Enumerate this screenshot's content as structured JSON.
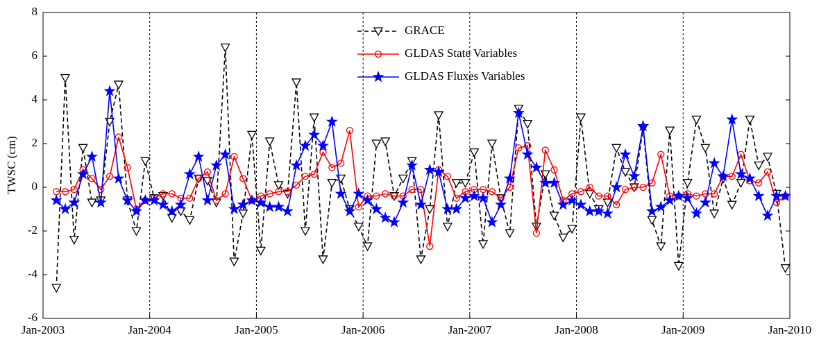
{
  "chart_data": {
    "type": "line",
    "y_label": "TWSC (cm)",
    "x": [
      "2003-02",
      "2003-03",
      "2003-04",
      "2003-05",
      "2003-06",
      "2003-07",
      "2003-08",
      "2003-09",
      "2003-10",
      "2003-11",
      "2003-12",
      "2004-01",
      "2004-02",
      "2004-03",
      "2004-04",
      "2004-05",
      "2004-06",
      "2004-07",
      "2004-08",
      "2004-09",
      "2004-10",
      "2004-11",
      "2004-12",
      "2005-01",
      "2005-02",
      "2005-03",
      "2005-04",
      "2005-05",
      "2005-06",
      "2005-07",
      "2005-08",
      "2005-09",
      "2005-10",
      "2005-11",
      "2005-12",
      "2006-01",
      "2006-02",
      "2006-03",
      "2006-04",
      "2006-05",
      "2006-06",
      "2006-07",
      "2006-08",
      "2006-09",
      "2006-10",
      "2006-11",
      "2006-12",
      "2007-01",
      "2007-02",
      "2007-03",
      "2007-04",
      "2007-05",
      "2007-06",
      "2007-07",
      "2007-08",
      "2007-09",
      "2007-10",
      "2007-11",
      "2007-12",
      "2008-01",
      "2008-02",
      "2008-03",
      "2008-04",
      "2008-05",
      "2008-06",
      "2008-07",
      "2008-08",
      "2008-09",
      "2008-10",
      "2008-11",
      "2008-12",
      "2009-01",
      "2009-02",
      "2009-03",
      "2009-04",
      "2009-05",
      "2009-06",
      "2009-07",
      "2009-08",
      "2009-09",
      "2009-10",
      "2009-11",
      "2009-12"
    ],
    "series": [
      {
        "name": "GRACE",
        "color": "#000000",
        "marker": "triangle-down",
        "dash": true,
        "values": [
          -4.6,
          5.0,
          -2.4,
          1.8,
          -0.7,
          -0.6,
          3.0,
          4.7,
          -0.6,
          -2.0,
          1.2,
          -0.5,
          -0.4,
          -1.4,
          -1.1,
          -1.5,
          0.4,
          0.3,
          -0.7,
          6.4,
          -3.4,
          -1.2,
          2.4,
          -2.9,
          2.1,
          0.1,
          -0.3,
          4.8,
          -2.0,
          3.2,
          -3.3,
          0.2,
          0.4,
          -1.0,
          -1.8,
          -2.7,
          2.0,
          2.1,
          -0.4,
          0.4,
          1.2,
          -3.3,
          -1.0,
          3.3,
          -1.8,
          0.2,
          0.2,
          1.6,
          -2.6,
          2.0,
          -0.5,
          -2.1,
          3.6,
          2.9,
          -1.8,
          0.6,
          -1.3,
          -2.3,
          -1.9,
          3.2,
          -0.3,
          -1.0,
          -0.7,
          1.8,
          0.7,
          0.0,
          2.7,
          -1.5,
          -2.7,
          2.6,
          -3.6,
          0.2,
          3.1,
          1.8,
          -1.2,
          0.4,
          -0.8,
          0.2,
          3.1,
          1.0,
          1.4,
          -0.3,
          -3.7
        ]
      },
      {
        "name": "GLDAS State Variables",
        "color": "#ff0000",
        "marker": "circle",
        "dash": false,
        "values": [
          -0.2,
          -0.2,
          -0.1,
          0.8,
          0.4,
          -0.1,
          0.5,
          2.3,
          0.9,
          -1.0,
          -0.6,
          -0.5,
          -0.3,
          -0.3,
          -0.5,
          -0.5,
          0.4,
          0.7,
          -0.6,
          -0.3,
          1.4,
          0.4,
          -0.6,
          -0.4,
          -0.3,
          -0.2,
          -0.2,
          0.1,
          0.5,
          0.6,
          1.6,
          0.9,
          1.1,
          2.6,
          -0.9,
          -0.4,
          -0.4,
          -0.3,
          -0.4,
          -0.4,
          -0.1,
          -0.1,
          -2.7,
          0.8,
          0.5,
          -0.5,
          -0.2,
          -0.1,
          -0.1,
          -0.2,
          -0.5,
          0.0,
          1.8,
          1.9,
          -2.1,
          1.7,
          0.8,
          -0.6,
          -0.3,
          -0.2,
          0.0,
          -0.4,
          -0.4,
          -0.8,
          -0.1,
          0.0,
          0.0,
          0.2,
          1.5,
          -0.4,
          -0.4,
          -0.3,
          -0.4,
          -0.3,
          -0.3,
          0.5,
          0.5,
          1.5,
          0.3,
          0.2,
          0.7,
          -0.7,
          -0.4
        ]
      },
      {
        "name": "GLDAS Fluxes Variables",
        "color": "#0000ff",
        "marker": "star",
        "dash": false,
        "values": [
          -0.6,
          -1.0,
          -0.7,
          0.6,
          1.4,
          -0.7,
          4.4,
          0.4,
          -0.6,
          -1.1,
          -0.6,
          -0.6,
          -0.8,
          -1.1,
          -0.8,
          0.6,
          1.4,
          -0.6,
          1.0,
          1.5,
          -1.0,
          -0.8,
          -0.6,
          -0.7,
          -0.9,
          -0.9,
          -1.1,
          1.0,
          1.9,
          2.4,
          1.9,
          3.0,
          -0.3,
          -1.1,
          -0.3,
          -0.6,
          -1.0,
          -1.4,
          -1.6,
          -0.7,
          1.0,
          -0.8,
          0.8,
          0.7,
          -1.0,
          -1.0,
          -0.5,
          -0.4,
          -0.5,
          -1.6,
          -0.8,
          0.4,
          3.4,
          1.5,
          0.9,
          0.2,
          0.2,
          -0.8,
          -0.6,
          -0.8,
          -1.1,
          -1.1,
          -1.2,
          0.0,
          1.5,
          0.5,
          2.8,
          -1.1,
          -0.9,
          -0.6,
          -0.4,
          -0.5,
          -1.2,
          -0.7,
          1.1,
          0.5,
          3.1,
          0.6,
          0.4,
          -0.4,
          -1.3,
          -0.4,
          -0.4
        ]
      }
    ],
    "xlim": [
      "2003-01",
      "2010-01"
    ],
    "xticks": [
      {
        "value": "2003-01",
        "label": "Jan-2003"
      },
      {
        "value": "2004-01",
        "label": "Jan-2004"
      },
      {
        "value": "2005-01",
        "label": "Jan-2005"
      },
      {
        "value": "2006-01",
        "label": "Jan-2006"
      },
      {
        "value": "2007-01",
        "label": "Jan-2007"
      },
      {
        "value": "2008-01",
        "label": "Jan-2008"
      },
      {
        "value": "2009-01",
        "label": "Jan-2009"
      },
      {
        "value": "2010-01",
        "label": "Jan-2010"
      }
    ],
    "ylim": [
      -6,
      8
    ],
    "yticks": [
      -6,
      -4,
      -2,
      0,
      2,
      4,
      6,
      8
    ],
    "grid": "x",
    "legend": "upper center"
  }
}
